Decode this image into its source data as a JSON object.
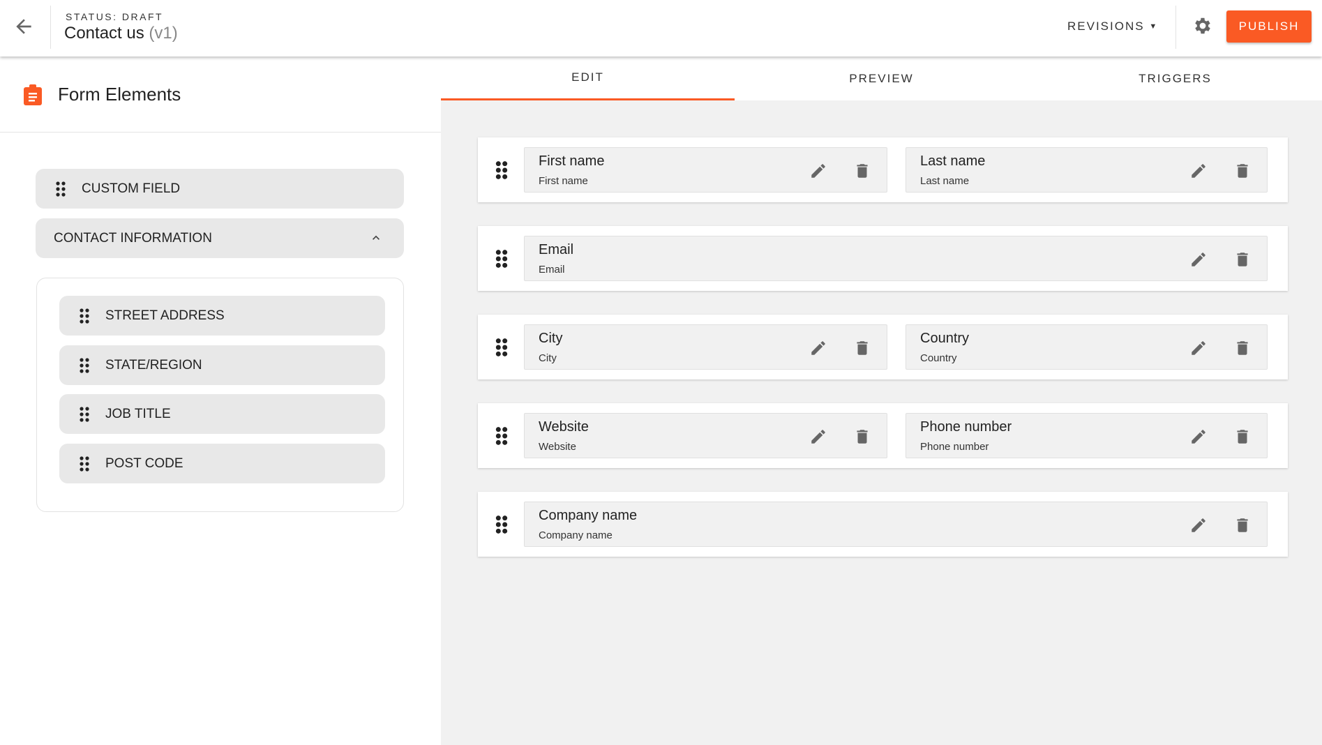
{
  "header": {
    "status": "STATUS: DRAFT",
    "title": "Contact us",
    "version": "(v1)",
    "revisions": "REVISIONS",
    "publish": "PUBLISH",
    "accent": "#fa5a24"
  },
  "sidebar": {
    "title": "Form Elements",
    "custom_field": "CUSTOM FIELD",
    "group": "CONTACT INFORMATION",
    "items": [
      {
        "label": "STREET ADDRESS"
      },
      {
        "label": "STATE/REGION"
      },
      {
        "label": "JOB TITLE"
      },
      {
        "label": "POST CODE"
      }
    ]
  },
  "tabs": [
    {
      "label": "EDIT"
    },
    {
      "label": "PREVIEW"
    },
    {
      "label": "TRIGGERS"
    }
  ],
  "rows": [
    [
      {
        "label": "First name",
        "placeholder": "First name"
      },
      {
        "label": "Last name",
        "placeholder": "Last name"
      }
    ],
    [
      {
        "label": "Email",
        "placeholder": "Email"
      }
    ],
    [
      {
        "label": "City",
        "placeholder": "City"
      },
      {
        "label": "Country",
        "placeholder": "Country"
      }
    ],
    [
      {
        "label": "Website",
        "placeholder": "Website"
      },
      {
        "label": "Phone number",
        "placeholder": "Phone number"
      }
    ],
    [
      {
        "label": "Company name",
        "placeholder": "Company name"
      }
    ]
  ]
}
